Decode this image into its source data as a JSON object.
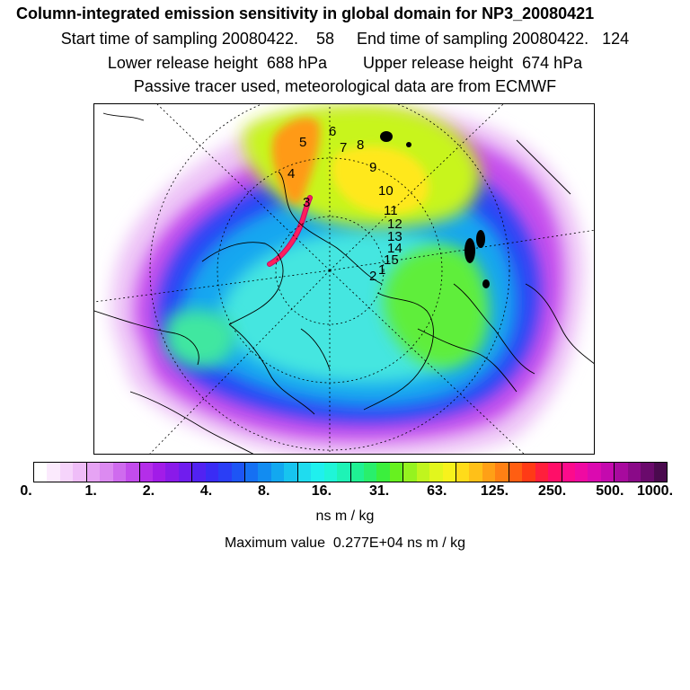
{
  "header": {
    "title": "Column-integrated emission sensitivity in global domain for NP3_20080421",
    "line1": "Start time of sampling 20080422.    58     End time of sampling 20080422.   124",
    "line2": "Lower release height  688 hPa        Upper release height  674 hPa",
    "line3": "Passive tracer used, meteorological data are from ECMWF"
  },
  "map": {
    "track_labels": [
      "5",
      "6",
      "7",
      "8",
      "4",
      "9",
      "3",
      "10",
      "11",
      "12",
      "13",
      "14",
      "15",
      "2",
      "1"
    ]
  },
  "legend": {
    "colors": [
      "#ffffff",
      "#fbeafd",
      "#f6d4fb",
      "#efbdf8",
      "#e6a3f4",
      "#dc8af1",
      "#cf6bee",
      "#c34cec",
      "#b42ee9",
      "#a21ce8",
      "#8a1ae9",
      "#701dee",
      "#5222f2",
      "#3a2cf5",
      "#2a3ef6",
      "#1d55f5",
      "#1570f3",
      "#128cf1",
      "#12a8f0",
      "#17c4ef",
      "#1fdcef",
      "#1ff0ee",
      "#1ff5d8",
      "#1ef3b6",
      "#1ff193",
      "#29ef6c",
      "#3bef3d",
      "#67f11f",
      "#95f31f",
      "#c0f51e",
      "#e2f61d",
      "#f7f21c",
      "#ffdc1a",
      "#ffc018",
      "#ffa016",
      "#ff8014",
      "#ff5e12",
      "#ff3a16",
      "#ff1f3c",
      "#ff0e68",
      "#fc0b8c",
      "#ef0aa2",
      "#db0ab0",
      "#c40aae",
      "#a80a9e",
      "#8a0a88",
      "#6a0a6c",
      "#4a0a4e"
    ],
    "ticks": [
      "0.",
      "1.",
      "2.",
      "4.",
      "8.",
      "16.",
      "31.",
      "63.",
      "125.",
      "250.",
      "500.",
      "1000."
    ],
    "unit": "ns m / kg"
  },
  "footer": {
    "max_value": "Maximum value  0.277E+04 ns m / kg"
  }
}
